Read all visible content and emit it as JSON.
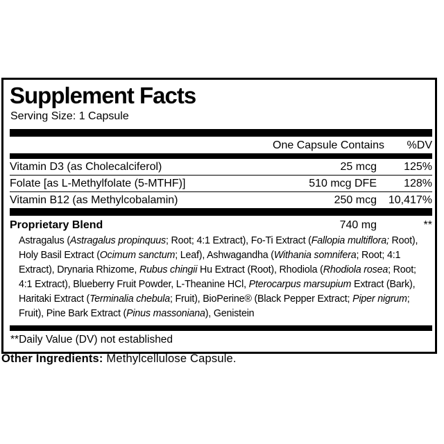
{
  "colors": {
    "ink": "#000000",
    "paper": "#ffffff"
  },
  "panel": {
    "title": "Supplement Facts",
    "serving_size": "Serving Size: 1 Capsule",
    "columns": {
      "amount": "One Capsule Contains",
      "dv": "%DV"
    },
    "nutrients": [
      {
        "name": "Vitamin D3 (as Cholecalciferol)",
        "amount": "25 mcg",
        "dv": "125%"
      },
      {
        "name": "Folate [as L-Methylfolate (5-MTHF)]",
        "amount": "510 mcg DFE",
        "dv": "128%"
      },
      {
        "name": "Vitamin B12 (as Methylcobalamin)",
        "amount": "250 mcg",
        "dv": "10,417%"
      }
    ],
    "blend": {
      "name": "Proprietary Blend",
      "amount": "740 mg",
      "dv": "**",
      "ingredients_runs": [
        {
          "t": "Astragalus ("
        },
        {
          "t": "Astragalus propinquus",
          "i": true
        },
        {
          "t": "; Root; 4:1 Extract), Fo-Ti Extract ("
        },
        {
          "t": "Fallopia multiflora;",
          "i": true
        },
        {
          "t": " Root), Holy Basil Extract ("
        },
        {
          "t": "Ocimum sanctum",
          "i": true
        },
        {
          "t": "; Leaf), Ashwagandha ("
        },
        {
          "t": "Withania somnifera",
          "i": true
        },
        {
          "t": "; Root; 4:1 Extract), Drynaria Rhizome, "
        },
        {
          "t": "Rubus chingii",
          "i": true
        },
        {
          "t": " Hu Extract (Root), Rhodiola ("
        },
        {
          "t": "Rhodiola rosea",
          "i": true
        },
        {
          "t": "; Root; 4:1 Extract), Blueberry Fruit Powder, L-Theanine HCl, "
        },
        {
          "t": "Pterocarpus marsupium",
          "i": true
        },
        {
          "t": " Extract (Bark), Haritaki Extract ("
        },
        {
          "t": "Terminalia chebula",
          "i": true
        },
        {
          "t": "; Fruit), BioPerine® (Black Pepper Extract; "
        },
        {
          "t": "Piper nigrum",
          "i": true
        },
        {
          "t": "; Fruit), Pine Bark Extract ("
        },
        {
          "t": "Pinus massoniana",
          "i": true
        },
        {
          "t": "), Genistein"
        }
      ]
    },
    "footnote": "**Daily Value (DV) not established",
    "other_ingredients": {
      "label": "Other Ingredients:",
      "value": " Methylcellulose Capsule."
    }
  }
}
